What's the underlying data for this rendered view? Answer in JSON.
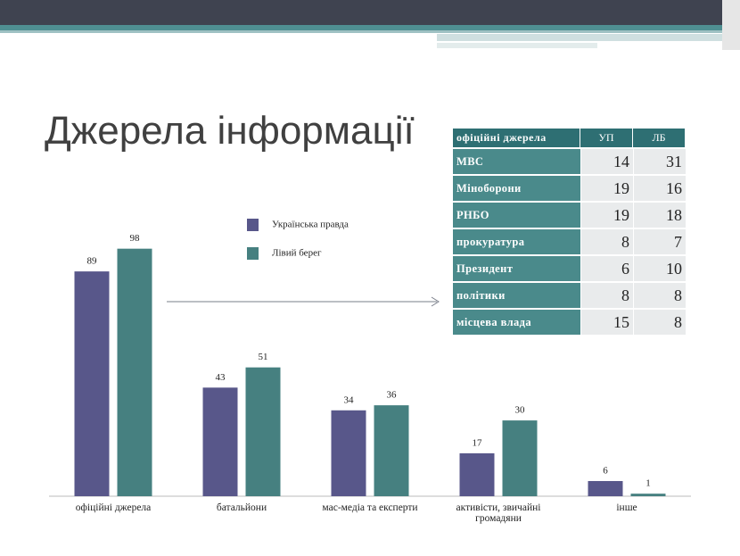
{
  "title": "Джерела інформації",
  "chart_data": {
    "type": "bar",
    "categories": [
      "офіційні джерела",
      "батальйони",
      "мас-медіа та експерти",
      "активісти, звичайні громадяни",
      "інше"
    ],
    "series": [
      {
        "name": "Українська правда",
        "color": "#58578a",
        "values": [
          89,
          43,
          34,
          17,
          6
        ]
      },
      {
        "name": "Лівий берег",
        "color": "#468080",
        "values": [
          98,
          51,
          36,
          30,
          1
        ]
      }
    ],
    "ylim": [
      0,
      100
    ]
  },
  "table": {
    "header": [
      "офіційні джерела",
      "УП",
      "ЛБ"
    ],
    "rows": [
      [
        "МВС",
        14,
        31
      ],
      [
        "Міноборони",
        19,
        16
      ],
      [
        "РНБО",
        19,
        18
      ],
      [
        "прокуратура",
        8,
        7
      ],
      [
        "Президент",
        6,
        10
      ],
      [
        "політики",
        8,
        8
      ],
      [
        "місцева влада",
        15,
        8
      ]
    ]
  }
}
